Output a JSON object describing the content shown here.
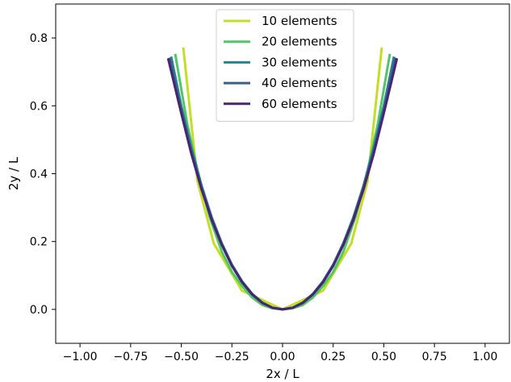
{
  "chart_data": {
    "type": "line",
    "title": "",
    "xlabel": "2x / L",
    "ylabel": "2y / L",
    "xlim": [
      -1.12,
      1.12
    ],
    "ylim": [
      -0.1,
      0.9
    ],
    "xticks": [
      -1.0,
      -0.75,
      -0.5,
      -0.25,
      0.0,
      0.25,
      0.5,
      0.75,
      1.0
    ],
    "xtick_labels": [
      "−1.00",
      "−0.75",
      "−0.50",
      "−0.25",
      "0.00",
      "0.25",
      "0.50",
      "0.75",
      "1.00"
    ],
    "yticks": [
      0.0,
      0.2,
      0.4,
      0.6,
      0.8
    ],
    "ytick_labels": [
      "0.0",
      "0.2",
      "0.4",
      "0.6",
      "0.8"
    ],
    "grid": false,
    "legend": "top-center",
    "series": [
      {
        "name": "10 elements",
        "color": "#c2df23",
        "x": [
          -0.49,
          -0.42,
          -0.34,
          -0.2,
          0.0,
          0.2,
          0.34,
          0.42,
          0.49
        ],
        "y": [
          0.772,
          0.378,
          0.195,
          0.055,
          0.0,
          0.055,
          0.195,
          0.378,
          0.772
        ]
      },
      {
        "name": "20 elements",
        "color": "#52c569",
        "x": [
          -0.53,
          -0.47,
          -0.42,
          -0.36,
          -0.3,
          -0.25,
          -0.2,
          -0.15,
          -0.1,
          -0.05,
          0.0,
          0.05,
          0.1,
          0.15,
          0.2,
          0.25,
          0.3,
          0.36,
          0.42,
          0.47,
          0.53
        ],
        "y": [
          0.753,
          0.545,
          0.41,
          0.272,
          0.17,
          0.11,
          0.069,
          0.035,
          0.013,
          0.003,
          0.0,
          0.003,
          0.013,
          0.035,
          0.069,
          0.11,
          0.17,
          0.272,
          0.41,
          0.545,
          0.753
        ]
      },
      {
        "name": "30 elements",
        "color": "#25858e",
        "x": [
          -0.55,
          -0.5,
          -0.45,
          -0.4,
          -0.35,
          -0.3,
          -0.25,
          -0.2,
          -0.15,
          -0.1,
          -0.05,
          0.0,
          0.05,
          0.1,
          0.15,
          0.2,
          0.25,
          0.3,
          0.35,
          0.4,
          0.45,
          0.5,
          0.55
        ],
        "y": [
          0.745,
          0.6,
          0.475,
          0.365,
          0.272,
          0.195,
          0.132,
          0.083,
          0.046,
          0.02,
          0.005,
          0.0,
          0.005,
          0.02,
          0.046,
          0.083,
          0.132,
          0.195,
          0.272,
          0.365,
          0.475,
          0.6,
          0.745
        ]
      },
      {
        "name": "40 elements",
        "color": "#355f8d",
        "x": [
          -0.558,
          -0.5,
          -0.45,
          -0.4,
          -0.35,
          -0.3,
          -0.25,
          -0.2,
          -0.15,
          -0.1,
          -0.05,
          0.0,
          0.05,
          0.1,
          0.15,
          0.2,
          0.25,
          0.3,
          0.35,
          0.4,
          0.45,
          0.5,
          0.558
        ],
        "y": [
          0.742,
          0.587,
          0.466,
          0.36,
          0.268,
          0.192,
          0.13,
          0.082,
          0.045,
          0.02,
          0.005,
          0.0,
          0.005,
          0.02,
          0.045,
          0.082,
          0.13,
          0.192,
          0.268,
          0.36,
          0.466,
          0.587,
          0.742
        ]
      },
      {
        "name": "60 elements",
        "color": "#482475",
        "x": [
          -0.565,
          -0.5,
          -0.45,
          -0.4,
          -0.35,
          -0.3,
          -0.25,
          -0.2,
          -0.15,
          -0.1,
          -0.05,
          0.0,
          0.05,
          0.1,
          0.15,
          0.2,
          0.25,
          0.3,
          0.35,
          0.4,
          0.45,
          0.5,
          0.565
        ],
        "y": [
          0.74,
          0.578,
          0.458,
          0.354,
          0.264,
          0.19,
          0.128,
          0.08,
          0.044,
          0.019,
          0.005,
          0.0,
          0.005,
          0.019,
          0.044,
          0.08,
          0.128,
          0.19,
          0.264,
          0.354,
          0.458,
          0.578,
          0.74
        ]
      }
    ]
  }
}
